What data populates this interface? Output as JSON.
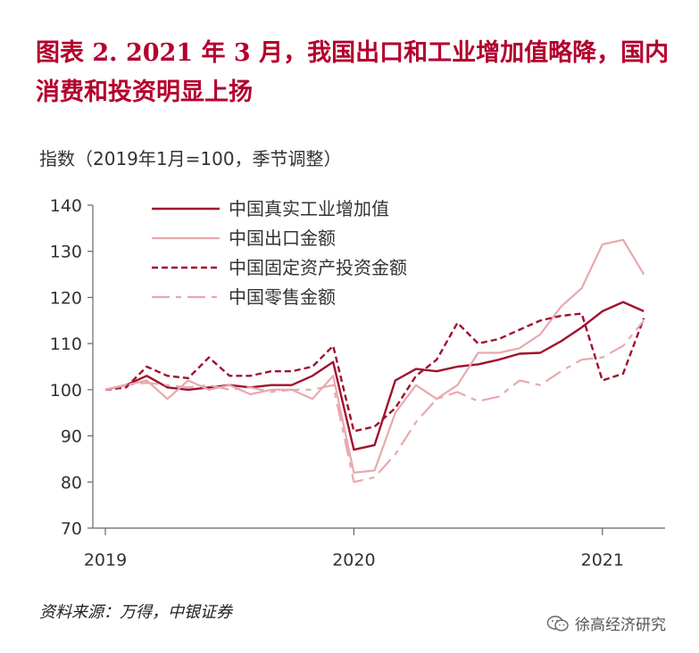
{
  "header": {
    "title": "图表 2.  2021 年 3 月，我国出口和工业增加值略降，国内消费和投资明显上扬"
  },
  "subtitle": "指数（2019年1月=100，季节调整）",
  "source": "资料来源：万得，中银证券",
  "watermark": {
    "text": "徐高经济研究",
    "icon": "wechat-icon"
  },
  "colors": {
    "title": "#b3002d",
    "dark_red": "#a0112e",
    "pink": "#e8a9ae",
    "grid": "#bdbdbd"
  },
  "chart_data": {
    "type": "line",
    "ylim": [
      70,
      140
    ],
    "yticks": [
      70,
      80,
      90,
      100,
      110,
      120,
      130,
      140
    ],
    "xticks": [
      "2019",
      "2020",
      "2021"
    ],
    "x": [
      "2019-01",
      "2019-02",
      "2019-03",
      "2019-04",
      "2019-05",
      "2019-06",
      "2019-07",
      "2019-08",
      "2019-09",
      "2019-10",
      "2019-11",
      "2019-12",
      "2020-01",
      "2020-02",
      "2020-03",
      "2020-04",
      "2020-05",
      "2020-06",
      "2020-07",
      "2020-08",
      "2020-09",
      "2020-10",
      "2020-11",
      "2020-12",
      "2021-01",
      "2021-02",
      "2021-03"
    ],
    "grid": false,
    "legend_position": "top-left",
    "series": [
      {
        "name": "中国真实工业增加值",
        "color": "#a0112e",
        "style": "solid",
        "values": [
          100,
          101,
          103,
          100.5,
          100,
          100.5,
          101,
          100.5,
          101,
          101,
          103,
          106,
          87,
          88,
          102,
          104.5,
          104,
          105,
          105.5,
          106.5,
          107.8,
          108,
          110.5,
          113.5,
          117,
          119,
          117
        ]
      },
      {
        "name": "中国出口金额",
        "color": "#e8a9ae",
        "style": "solid",
        "values": [
          100,
          101,
          102,
          98,
          102,
          100,
          101,
          99,
          100,
          100,
          98,
          103,
          82,
          82.5,
          95,
          101,
          98,
          101,
          108,
          108,
          109,
          112,
          118,
          122,
          131.5,
          132.5,
          125
        ]
      },
      {
        "name": "中国固定资产投资金额",
        "color": "#a0112e",
        "style": "dashed",
        "values": [
          100,
          100.5,
          105,
          103,
          102.5,
          107,
          103,
          103,
          104,
          104,
          105,
          109.5,
          91,
          92,
          96,
          103,
          106.5,
          114.5,
          110,
          111,
          113,
          115,
          116,
          116.5,
          102,
          103.5,
          115.5
        ]
      },
      {
        "name": "中国零售金额",
        "color": "#e8a9ae",
        "style": "dash-dot",
        "values": [
          100,
          101,
          101.5,
          101,
          100.5,
          101,
          100,
          100.5,
          99.5,
          100,
          100,
          101,
          80,
          81,
          86,
          93,
          98,
          99.5,
          97.5,
          98.5,
          102,
          101,
          104,
          106.5,
          107,
          109.5,
          115
        ]
      }
    ]
  }
}
